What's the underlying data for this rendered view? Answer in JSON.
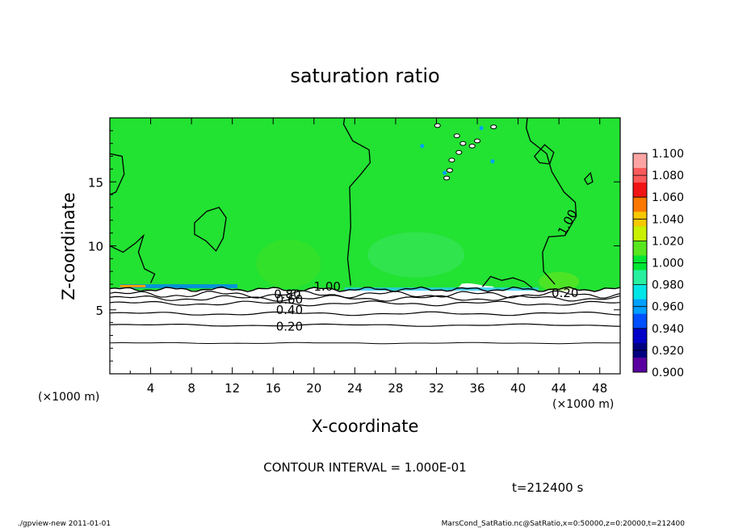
{
  "chart_data": {
    "type": "heatmap",
    "title": "saturation ratio",
    "xlabel": "X-coordinate",
    "ylabel": "Z-coordinate",
    "x_unit_label_left": "(×1000 m)",
    "x_unit_label_right": "(×1000 m)",
    "xlim": [
      0,
      50
    ],
    "ylim": [
      0,
      20
    ],
    "x_ticks": [
      4,
      8,
      12,
      16,
      20,
      24,
      28,
      32,
      36,
      40,
      44,
      48
    ],
    "y_ticks": [
      5,
      10,
      15
    ],
    "contour_labels": [
      {
        "text": "1.00",
        "x": 21.3,
        "z": 6.8
      },
      {
        "text": "1.00",
        "x": 45.2,
        "z": 12.0
      },
      {
        "text": "0.80",
        "x": 17.4,
        "z": 6.2
      },
      {
        "text": "0.60",
        "x": 17.6,
        "z": 5.8
      },
      {
        "text": "0.40",
        "x": 17.6,
        "z": 5.0
      },
      {
        "text": "0.20",
        "x": 17.6,
        "z": 3.7
      },
      {
        "text": "0.20",
        "x": 44.6,
        "z": 6.3
      }
    ],
    "contour_levels_z": [
      {
        "level": "0.20",
        "z": 3.8
      },
      {
        "level": "0.40",
        "z": 4.7
      },
      {
        "level": "0.60",
        "z": 5.5
      },
      {
        "level": "0.80",
        "z": 5.9
      },
      {
        "level": "0.90",
        "z": 6.2
      }
    ],
    "lower_line_z": 2.4,
    "saturation_top_z": 6.6,
    "colorbar": {
      "ticks": [
        "1.100",
        "1.080",
        "1.060",
        "1.040",
        "1.020",
        "1.000",
        "0.980",
        "0.960",
        "0.940",
        "0.920",
        "0.900"
      ],
      "colors": [
        "#fca4a4",
        "#fa5a5a",
        "#f01414",
        "#fa7800",
        "#f5c800",
        "#c8f000",
        "#5ae61e",
        "#00e632",
        "#28f0a0",
        "#00e6e6",
        "#00a0ff",
        "#0050ff",
        "#0000c8",
        "#000080",
        "#5a00a0"
      ]
    },
    "field_color": "#22e232",
    "contour_interval": "CONTOUR INTERVAL = 1.000E-01",
    "time": "t=212400 s"
  },
  "footer": {
    "left": "./gpview-new   2011-01-01",
    "right": "MarsCond_SatRatio.nc@SatRatio,x=0:50000,z=0:20000,t=212400"
  }
}
